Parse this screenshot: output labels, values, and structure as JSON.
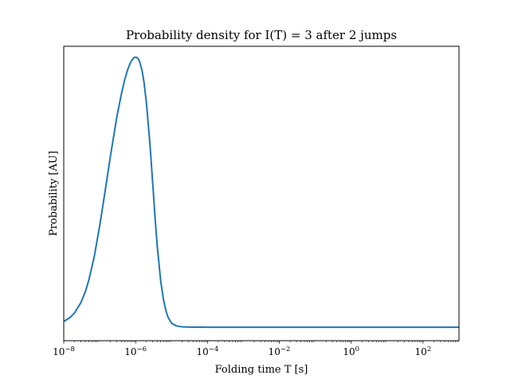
{
  "chart_data": {
    "type": "line",
    "title": "Probability density for I(T) = 3 after 2 jumps",
    "xlabel": "Folding time T [s]",
    "ylabel": "Probability [AU]",
    "x_scale": "log",
    "xlim": [
      1e-08,
      1000
    ],
    "ylim": [
      -0.05,
      1.04
    ],
    "yticks_shown": false,
    "grid": false,
    "legend": "none",
    "x_ticks": [
      {
        "base": "10",
        "exp": "−8"
      },
      {
        "base": "10",
        "exp": "−6"
      },
      {
        "base": "10",
        "exp": "−4"
      },
      {
        "base": "10",
        "exp": "−2"
      },
      {
        "base": "10",
        "exp": "0"
      },
      {
        "base": "10",
        "exp": "2"
      }
    ],
    "x_tick_values": [
      1e-08,
      1e-06,
      0.0001,
      0.01,
      1,
      100
    ],
    "series": [
      {
        "color": "#1f77b4",
        "x": [
          1e-08,
          1.5e-08,
          2e-08,
          3e-08,
          4e-08,
          5e-08,
          7e-08,
          1e-07,
          1.5e-07,
          2e-07,
          3e-07,
          4e-07,
          5e-07,
          6e-07,
          7e-07,
          8e-07,
          9e-07,
          1e-06,
          1.1e-06,
          1.2e-06,
          1.3e-06,
          1.5e-06,
          1.7e-06,
          2e-06,
          2.5e-06,
          3e-06,
          3.5e-06,
          4e-06,
          5e-06,
          6e-06,
          7e-06,
          8e-06,
          1e-05,
          1.3e-05,
          1.6e-05,
          2e-05,
          3e-05,
          5e-05,
          0.0001,
          0.001,
          0.01,
          0.1,
          1,
          10,
          100,
          1000
        ],
        "y": [
          0.021,
          0.036,
          0.053,
          0.091,
          0.132,
          0.175,
          0.259,
          0.375,
          0.525,
          0.635,
          0.778,
          0.862,
          0.918,
          0.953,
          0.976,
          0.99,
          0.998,
          1.0,
          0.998,
          0.992,
          0.982,
          0.952,
          0.91,
          0.83,
          0.68,
          0.53,
          0.4,
          0.3,
          0.17,
          0.1,
          0.06,
          0.037,
          0.015,
          0.006,
          0.003,
          0.0015,
          0.0005,
          0.0001,
          0.0,
          0.0,
          0.0,
          0.0,
          0.0,
          0.0,
          0.0,
          0.0
        ]
      }
    ]
  }
}
